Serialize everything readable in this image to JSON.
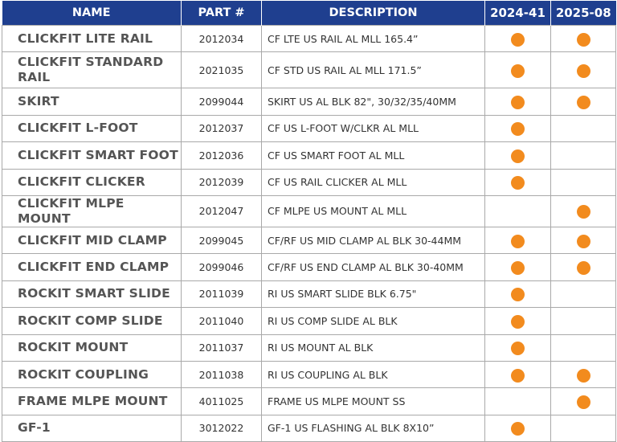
{
  "headers": {
    "name": "NAME",
    "part": "PART #",
    "description": "DESCRIPTION",
    "col_a": "2024-41",
    "col_b": "2025-08"
  },
  "colors": {
    "header_bg": "#1f3f8f",
    "dot": "#f28b1e"
  },
  "rows": [
    {
      "name": "CLICKFIT LITE RAIL",
      "part": "2012034",
      "description": "CF LTE US RAIL AL MLL 165.4”",
      "a": true,
      "b": true
    },
    {
      "name": "CLICKFIT STANDARD RAIL",
      "part": "2021035",
      "description": "CF STD US RAIL AL MLL 171.5”",
      "a": true,
      "b": true
    },
    {
      "name": "SKIRT",
      "part": "2099044",
      "description": "SKIRT US AL BLK 82\", 30/32/35/40MM",
      "a": true,
      "b": true
    },
    {
      "name": "CLICKFIT L-FOOT",
      "part": "2012037",
      "description": "CF US L-FOOT W/CLKR AL MLL",
      "a": true,
      "b": false
    },
    {
      "name": "CLICKFIT SMART FOOT",
      "part": "2012036",
      "description": "CF US SMART FOOT AL MLL",
      "a": true,
      "b": false
    },
    {
      "name": "CLICKFIT CLICKER",
      "part": "2012039",
      "description": "CF US RAIL CLICKER AL MLL",
      "a": true,
      "b": false
    },
    {
      "name": "CLICKFIT MLPE MOUNT",
      "part": "2012047",
      "description": "CF MLPE US MOUNT AL MLL",
      "a": false,
      "b": true
    },
    {
      "name": "CLICKFIT MID CLAMP",
      "part": "2099045",
      "description": "CF/RF US MID CLAMP AL BLK 30-44MM",
      "a": true,
      "b": true
    },
    {
      "name": "CLICKFIT END CLAMP",
      "part": "2099046",
      "description": "CF/RF US END CLAMP AL BLK 30-40MM",
      "a": true,
      "b": true
    },
    {
      "name": "ROCKIT SMART SLIDE",
      "part": "2011039",
      "description": "RI US SMART SLIDE BLK 6.75\"",
      "a": true,
      "b": false
    },
    {
      "name": "ROCKIT COMP SLIDE",
      "part": "2011040",
      "description": "RI US COMP SLIDE AL BLK",
      "a": true,
      "b": false
    },
    {
      "name": "ROCKIT MOUNT",
      "part": "2011037",
      "description": "RI US MOUNT AL BLK",
      "a": true,
      "b": false
    },
    {
      "name": "ROCKIT COUPLING",
      "part": "2011038",
      "description": "RI US COUPLING AL BLK",
      "a": true,
      "b": true
    },
    {
      "name": "FRAME MLPE MOUNT",
      "part": "4011025",
      "description": "FRAME US MLPE MOUNT SS",
      "a": false,
      "b": true
    },
    {
      "name": "GF-1",
      "part": "3012022",
      "description": "GF-1 US FLASHING AL BLK 8X10”",
      "a": true,
      "b": false
    }
  ]
}
